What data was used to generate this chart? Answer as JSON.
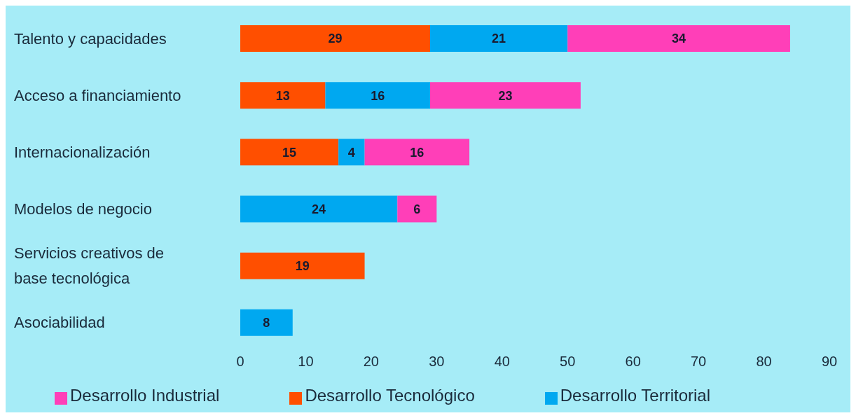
{
  "chart_data": {
    "type": "bar",
    "orientation": "horizontal",
    "stacked": true,
    "categories": [
      "Talento y capacidades",
      "Acceso a financiamiento",
      "Internacionalización",
      "Modelos de negocio",
      "Servicios creativos de base tecnológica",
      "Asociabilidad"
    ],
    "series": [
      {
        "name": "Desarrollo Tecnológico",
        "color": "#ff4f00",
        "values": [
          29,
          13,
          15,
          null,
          19,
          null
        ]
      },
      {
        "name": "Desarrollo Territorial",
        "color": "#00a8f0",
        "values": [
          21,
          16,
          4,
          24,
          null,
          8
        ]
      },
      {
        "name": "Desarrollo Industrial",
        "color": "#ff3fb8",
        "values": [
          34,
          23,
          16,
          6,
          null,
          null
        ]
      }
    ],
    "xlim": [
      0,
      90
    ],
    "xticks": [
      0,
      10,
      20,
      30,
      40,
      50,
      60,
      70,
      80,
      90
    ],
    "data_labels": true,
    "grid": false,
    "legend": "bottom"
  }
}
